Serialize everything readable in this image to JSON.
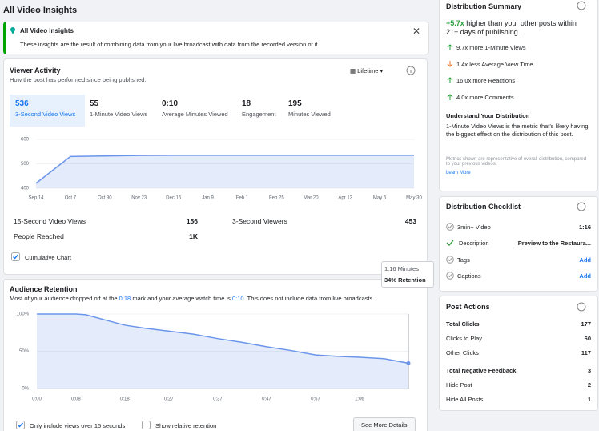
{
  "header": {
    "title": "All Video Insights"
  },
  "notice": {
    "title": "All Video Insights",
    "text": "These insights are the result of combining data from your live broadcast with data from the recorded version of it."
  },
  "viewer_activity": {
    "title": "Viewer Activity",
    "subtitle": "How the post has performed since being published.",
    "period": "Lifetime",
    "metrics": [
      {
        "value": "536",
        "label": "3-Second Video Views"
      },
      {
        "value": "55",
        "label": "1-Minute Video Views"
      },
      {
        "value": "0:10",
        "label": "Average Minutes Viewed"
      },
      {
        "value": "18",
        "label": "Engagement"
      },
      {
        "value": "195",
        "label": "Minutes Viewed"
      }
    ],
    "chart": {
      "type": "line",
      "categories": [
        "Sep 14",
        "Oct 7",
        "Oct 30",
        "Nov 23",
        "Dec 16",
        "Jan 9",
        "Feb 1",
        "Feb 25",
        "Mar 20",
        "Apr 13",
        "May 6",
        "May 30"
      ],
      "values": [
        420,
        530,
        532,
        534,
        535,
        535,
        535,
        535,
        535,
        535,
        535,
        535
      ],
      "color": "#6b95ea",
      "ylim": [
        400,
        600
      ],
      "yticks": [
        400,
        500,
        600
      ],
      "grid": true
    },
    "stats": [
      {
        "label": "15-Second Video Views",
        "value": "156"
      },
      {
        "label": "3-Second Viewers",
        "value": "453"
      },
      {
        "label": "People Reached",
        "value": "1K"
      }
    ],
    "checkbox": "Cumulative Chart"
  },
  "tooltip": {
    "time": "1:16 Minutes",
    "retention": "34% Retention"
  },
  "audience_retention": {
    "title": "Audience Retention",
    "description": [
      "Most of your audience dropped off at the ",
      "0:18",
      " mark and your average watch time is ",
      "0:10",
      ". This does not include data from live broadcasts."
    ],
    "chart": {
      "type": "line",
      "x": [
        0,
        8,
        10,
        14,
        18,
        22,
        27,
        32,
        37,
        42,
        47,
        52,
        57,
        62,
        66,
        71,
        76
      ],
      "values": [
        100,
        100,
        99,
        92,
        85,
        81,
        77,
        73,
        67,
        62,
        56,
        51,
        45,
        43,
        42,
        40,
        34
      ],
      "color": "#6b95ea",
      "xlim": [
        0,
        76
      ],
      "xticks": [
        {
          "value": 0,
          "label": "0:00"
        },
        {
          "value": 8,
          "label": "0:08"
        },
        {
          "value": 18,
          "label": "0:18"
        },
        {
          "value": 27,
          "label": "0:27"
        },
        {
          "value": 37,
          "label": "0:37"
        },
        {
          "value": 47,
          "label": "0:47"
        },
        {
          "value": 57,
          "label": "0:57"
        },
        {
          "value": 66,
          "label": "1:06"
        }
      ],
      "ylim": [
        0,
        100
      ],
      "yticks": [
        {
          "value": 0,
          "label": "0%"
        },
        {
          "value": 50,
          "label": "50%"
        },
        {
          "value": 100,
          "label": "100%"
        }
      ],
      "grid": true
    },
    "options": [
      "Only include views over 15 seconds",
      "Show relative retention"
    ],
    "button": "See More Details"
  },
  "distribution_summary": {
    "title": "Distribution Summary",
    "headline": [
      "+5.7x",
      " higher than your other posts within 21+ days of publishing."
    ],
    "items": [
      "9.7x more 1-Minute Views",
      "1.4x less Average View Time",
      "16.0x more Reactions",
      "4.0x more Comments"
    ],
    "understand_title": "Understand Your Distribution",
    "understand_text": "1-Minute Video Views is the metric that's likely having the biggest effect on the distribution of this post.",
    "note": "Metrics shown are representative of overall distribution, compared to your previous videos.",
    "link": "Learn More"
  },
  "distribution_checklist": {
    "title": "Distribution Checklist",
    "items": [
      {
        "label": "3min+ Video",
        "value": "1:16"
      },
      {
        "label": "Description",
        "value": "Preview to the Restaura..."
      },
      {
        "label": "Tags",
        "value": "Add"
      },
      {
        "label": "Captions",
        "value": "Add"
      }
    ]
  },
  "post_actions": {
    "title": "Post Actions",
    "rows": [
      {
        "label": "Total Clicks",
        "value": "177"
      },
      {
        "label": "Clicks to Play",
        "value": "60"
      },
      {
        "label": "Other Clicks",
        "value": "117"
      },
      {
        "label": "Total Negative Feedback",
        "value": "3"
      },
      {
        "label": "Hide Post",
        "value": "2"
      },
      {
        "label": "Hide All Posts",
        "value": "1"
      }
    ]
  }
}
